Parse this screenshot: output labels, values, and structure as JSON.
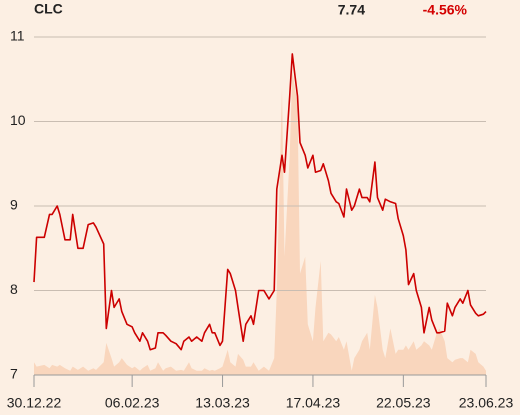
{
  "header": {
    "symbol": "CLC",
    "price": "7.74",
    "change": "-4.56%"
  },
  "chart_data": {
    "type": "line",
    "x": [
      0,
      1,
      4,
      6,
      7,
      9,
      10,
      12,
      14,
      15,
      17,
      19,
      21,
      23,
      24,
      27,
      28,
      30,
      31,
      33,
      34,
      36,
      38,
      39,
      41,
      42,
      44,
      45,
      47,
      48,
      50,
      51,
      53,
      55,
      57,
      58,
      60,
      61,
      63,
      65,
      66,
      68,
      69,
      70,
      72,
      73,
      75,
      76,
      78,
      79,
      81,
      82,
      84,
      85,
      87,
      89,
      91,
      93,
      94,
      96,
      97,
      99,
      100,
      102,
      103,
      105,
      106,
      108,
      109,
      111,
      112,
      114,
      115,
      117,
      118,
      120,
      121,
      123,
      124,
      126,
      127,
      129,
      130,
      132,
      133,
      135,
      136,
      138,
      140,
      141,
      143,
      144,
      145,
      147,
      148,
      150,
      151,
      153,
      154,
      156,
      157,
      159,
      160,
      162,
      163,
      165,
      166,
      168,
      169,
      171,
      172,
      174,
      175
    ],
    "series": [
      {
        "name": "Price",
        "color": "#cc0000",
        "values": [
          8.1,
          8.63,
          8.63,
          8.9,
          8.9,
          9.0,
          8.9,
          8.6,
          8.6,
          8.9,
          8.5,
          8.5,
          8.78,
          8.8,
          8.75,
          8.55,
          7.55,
          8.0,
          7.8,
          7.9,
          7.75,
          7.6,
          7.57,
          7.5,
          7.4,
          7.5,
          7.4,
          7.3,
          7.32,
          7.5,
          7.5,
          7.47,
          7.4,
          7.37,
          7.3,
          7.4,
          7.45,
          7.4,
          7.45,
          7.4,
          7.5,
          7.6,
          7.5,
          7.5,
          7.35,
          7.4,
          8.25,
          8.2,
          8.0,
          7.8,
          7.4,
          7.6,
          7.7,
          7.6,
          8.0,
          8.0,
          7.9,
          8.0,
          9.2,
          9.6,
          9.4,
          10.3,
          10.8,
          10.3,
          9.75,
          9.6,
          9.45,
          9.6,
          9.4,
          9.42,
          9.5,
          9.3,
          9.15,
          9.05,
          9.03,
          8.87,
          9.2,
          8.95,
          9.0,
          9.2,
          9.1,
          9.1,
          9.05,
          9.52,
          9.1,
          8.95,
          9.08,
          9.05,
          9.03,
          8.85,
          8.65,
          8.48,
          8.07,
          8.2,
          8.0,
          7.8,
          7.5,
          7.8,
          7.65,
          7.5,
          7.5,
          7.52,
          7.85,
          7.7,
          7.8,
          7.9,
          7.85,
          8.0,
          7.83,
          7.73,
          7.7,
          7.72,
          7.75
        ]
      },
      {
        "name": "Volume",
        "color": "#f9d6bd",
        "values": [
          7.15,
          7.1,
          7.12,
          7.08,
          7.12,
          7.1,
          7.12,
          7.08,
          7.05,
          7.1,
          7.06,
          7.1,
          7.05,
          7.08,
          7.06,
          7.15,
          7.38,
          7.2,
          7.1,
          7.15,
          7.2,
          7.12,
          7.08,
          7.1,
          7.05,
          7.08,
          7.12,
          7.05,
          7.08,
          7.15,
          7.05,
          7.08,
          7.1,
          7.05,
          7.06,
          7.05,
          7.15,
          7.08,
          7.05,
          7.05,
          7.08,
          7.05,
          7.06,
          7.05,
          7.08,
          7.1,
          7.3,
          7.15,
          7.1,
          7.25,
          7.18,
          7.1,
          7.1,
          7.15,
          7.05,
          7.1,
          7.05,
          7.2,
          8.0,
          10.4,
          8.4,
          9.6,
          10.6,
          10.2,
          8.2,
          8.4,
          7.6,
          7.4,
          7.8,
          8.35,
          7.4,
          7.5,
          7.48,
          7.4,
          7.45,
          7.3,
          7.4,
          7.05,
          7.2,
          7.3,
          7.4,
          7.5,
          7.3,
          7.95,
          7.8,
          7.3,
          7.2,
          7.55,
          7.25,
          7.3,
          7.3,
          7.35,
          7.3,
          7.4,
          7.3,
          7.35,
          7.4,
          7.35,
          7.3,
          7.5,
          7.55,
          7.4,
          7.2,
          7.15,
          7.18,
          7.2,
          7.2,
          7.15,
          7.3,
          7.25,
          7.15,
          7.1,
          7.05
        ]
      }
    ],
    "xlim": [
      0,
      175
    ],
    "xticks": [
      {
        "value": 0,
        "label": "30.12.22"
      },
      {
        "value": 38,
        "label": "06.02.23"
      },
      {
        "value": 73,
        "label": "13.03.23"
      },
      {
        "value": 108,
        "label": "17.04.23"
      },
      {
        "value": 143,
        "label": "22.05.23"
      },
      {
        "value": 175,
        "label": "23.06.23"
      }
    ],
    "ylim": [
      7,
      11
    ],
    "yticks": [
      7,
      8,
      9,
      10,
      11
    ],
    "grid": true
  }
}
